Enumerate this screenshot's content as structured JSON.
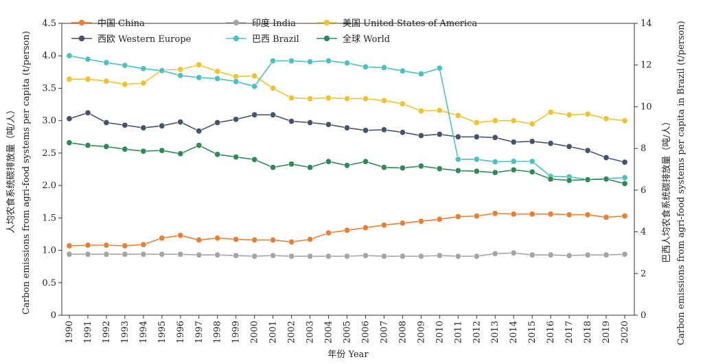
{
  "chart_data": {
    "type": "line",
    "xlabel": "年份 Year",
    "ylabel_left": "人均农食系统碳排放量（吨/人）Carbon emissions from agri-food systems per capita (t/person)",
    "ylabel_left_line1": "人均农食系统碳排放量（吨/人）",
    "ylabel_left_line2": "Carbon emissions from agri-food systems per capita (t/person)",
    "ylabel_right_line1": "巴西人均农食系统碳排放量（吨/人）",
    "ylabel_right_line2": "Carbon emissions from agri-food systems per capita in Brazil (t/person)",
    "ylim_left": [
      0,
      4.5
    ],
    "ylim_right": [
      0,
      14
    ],
    "grid": false,
    "legend_placement": "top",
    "x": [
      1990,
      1991,
      1992,
      1993,
      1994,
      1995,
      1996,
      1997,
      1998,
      1999,
      2000,
      2001,
      2002,
      2003,
      2004,
      2005,
      2006,
      2007,
      2008,
      2009,
      2010,
      2011,
      2012,
      2013,
      2014,
      2015,
      2016,
      2017,
      2018,
      2019,
      2020
    ],
    "series": [
      {
        "name": "中国 China",
        "axis": "left",
        "color": "#ED7D31",
        "values": [
          1.07,
          1.08,
          1.08,
          1.07,
          1.09,
          1.19,
          1.23,
          1.16,
          1.19,
          1.17,
          1.16,
          1.16,
          1.13,
          1.17,
          1.27,
          1.31,
          1.35,
          1.39,
          1.42,
          1.45,
          1.48,
          1.52,
          1.53,
          1.57,
          1.56,
          1.56,
          1.56,
          1.55,
          1.55,
          1.51,
          1.53
        ]
      },
      {
        "name": "印度 India",
        "axis": "left",
        "color": "#A5A5A5",
        "values": [
          0.94,
          0.94,
          0.94,
          0.94,
          0.94,
          0.94,
          0.94,
          0.93,
          0.93,
          0.92,
          0.91,
          0.92,
          0.91,
          0.91,
          0.91,
          0.91,
          0.92,
          0.91,
          0.91,
          0.91,
          0.92,
          0.91,
          0.91,
          0.95,
          0.96,
          0.93,
          0.93,
          0.92,
          0.93,
          0.93,
          0.94
        ]
      },
      {
        "name": "美国 United States of America",
        "axis": "left",
        "color": "#F2C12E",
        "values": [
          3.64,
          3.64,
          3.61,
          3.56,
          3.58,
          3.78,
          3.79,
          3.86,
          3.76,
          3.68,
          3.69,
          3.5,
          3.35,
          3.34,
          3.35,
          3.34,
          3.34,
          3.31,
          3.26,
          3.15,
          3.16,
          3.08,
          2.97,
          3.0,
          3.0,
          2.95,
          3.13,
          3.09,
          3.1,
          3.03,
          3.0
        ]
      },
      {
        "name": "西欧 Western Europe",
        "axis": "left",
        "color": "#44546A",
        "values": [
          3.03,
          3.12,
          2.97,
          2.93,
          2.89,
          2.92,
          2.98,
          2.84,
          2.97,
          3.02,
          3.09,
          3.09,
          2.99,
          2.97,
          2.94,
          2.89,
          2.85,
          2.86,
          2.82,
          2.77,
          2.79,
          2.75,
          2.75,
          2.74,
          2.67,
          2.68,
          2.65,
          2.6,
          2.54,
          2.43,
          2.36
        ]
      },
      {
        "name": "巴西 Brazil",
        "axis": "right",
        "color": "#4BC0C0",
        "values": [
          12.45,
          12.28,
          12.12,
          11.98,
          11.83,
          11.73,
          11.5,
          11.4,
          11.35,
          11.21,
          10.98,
          12.2,
          12.2,
          12.16,
          12.2,
          12.1,
          11.91,
          11.88,
          11.72,
          11.58,
          11.85,
          7.48,
          7.48,
          7.36,
          7.38,
          7.38,
          6.66,
          6.64,
          6.51,
          6.55,
          6.6
        ]
      },
      {
        "name": "全球 World",
        "axis": "left",
        "color": "#2E8B57",
        "values": [
          2.66,
          2.62,
          2.6,
          2.56,
          2.53,
          2.54,
          2.49,
          2.62,
          2.48,
          2.44,
          2.4,
          2.28,
          2.33,
          2.28,
          2.37,
          2.31,
          2.37,
          2.28,
          2.27,
          2.3,
          2.26,
          2.23,
          2.22,
          2.2,
          2.24,
          2.21,
          2.1,
          2.08,
          2.09,
          2.1,
          2.03
        ]
      }
    ],
    "left_ticks": [
      "0",
      "0.5",
      "1.0",
      "1.5",
      "2.0",
      "2.5",
      "3.0",
      "3.5",
      "4.0",
      "4.5"
    ],
    "left_tick_values": [
      0,
      0.5,
      1.0,
      1.5,
      2.0,
      2.5,
      3.0,
      3.5,
      4.0,
      4.5
    ],
    "right_ticks": [
      "0",
      "2",
      "4",
      "6",
      "8",
      "10",
      "12",
      "14"
    ],
    "right_tick_values": [
      0,
      2,
      4,
      6,
      8,
      10,
      12,
      14
    ]
  }
}
